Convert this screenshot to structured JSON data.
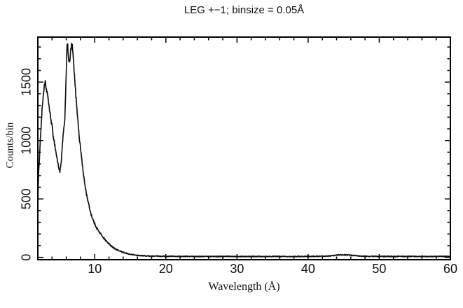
{
  "figure": {
    "kind": "scientific-plot",
    "background": "#ffffff"
  },
  "chart_data": {
    "type": "line",
    "title": "LEG +−1; binsize = 0.05Å",
    "xlabel": "Wavelength (Å)",
    "ylabel": "Counts/bin",
    "xlim": [
      2,
      60
    ],
    "ylim": [
      -20,
      1885
    ],
    "x_major_ticks": [
      10,
      20,
      30,
      40,
      50,
      60
    ],
    "x_tick_labels": [
      "10",
      "20",
      "30",
      "40",
      "50",
      "60"
    ],
    "x_minor_tick_step": 2,
    "y_major_ticks": [
      0,
      500,
      1000,
      1500
    ],
    "y_tick_labels": [
      "0",
      "500",
      "1000",
      "1500"
    ],
    "y_minor_tick_step": 100,
    "grid": false,
    "legend": "none",
    "bin_size_angstrom": 0.05,
    "line_color": "#0d0d0d",
    "fuzz_color": "#a8a8a8",
    "frame_color": "#000000",
    "series": [
      {
        "name": "LEG +−1",
        "points": [
          [
            2.0,
            430
          ],
          [
            2.02,
            640
          ],
          [
            2.05,
            580
          ],
          [
            2.1,
            690
          ],
          [
            2.2,
            820
          ],
          [
            2.3,
            950
          ],
          [
            2.4,
            1060
          ],
          [
            2.5,
            1160
          ],
          [
            2.6,
            1260
          ],
          [
            2.7,
            1340
          ],
          [
            2.8,
            1415
          ],
          [
            2.9,
            1455
          ],
          [
            3.0,
            1480
          ],
          [
            3.05,
            1490
          ],
          [
            3.1,
            1470
          ],
          [
            3.2,
            1440
          ],
          [
            3.3,
            1420
          ],
          [
            3.45,
            1345
          ],
          [
            3.55,
            1320
          ],
          [
            3.65,
            1255
          ],
          [
            3.8,
            1195
          ],
          [
            3.95,
            1145
          ],
          [
            4.1,
            1070
          ],
          [
            4.25,
            1010
          ],
          [
            4.4,
            955
          ],
          [
            4.55,
            900
          ],
          [
            4.7,
            845
          ],
          [
            4.85,
            795
          ],
          [
            4.95,
            770
          ],
          [
            5.05,
            745
          ],
          [
            5.12,
            735
          ],
          [
            5.2,
            765
          ],
          [
            5.3,
            820
          ],
          [
            5.4,
            910
          ],
          [
            5.5,
            1005
          ],
          [
            5.6,
            1065
          ],
          [
            5.7,
            1110
          ],
          [
            5.78,
            1165
          ],
          [
            5.85,
            1290
          ],
          [
            5.95,
            1510
          ],
          [
            6.05,
            1700
          ],
          [
            6.1,
            1790
          ],
          [
            6.15,
            1835
          ],
          [
            6.22,
            1790
          ],
          [
            6.3,
            1725
          ],
          [
            6.4,
            1665
          ],
          [
            6.5,
            1675
          ],
          [
            6.6,
            1755
          ],
          [
            6.7,
            1795
          ],
          [
            6.78,
            1820
          ],
          [
            6.88,
            1790
          ],
          [
            6.98,
            1705
          ],
          [
            7.1,
            1605
          ],
          [
            7.2,
            1505
          ],
          [
            7.35,
            1385
          ],
          [
            7.5,
            1280
          ],
          [
            7.65,
            1160
          ],
          [
            7.8,
            1045
          ],
          [
            7.95,
            960
          ],
          [
            8.1,
            885
          ],
          [
            8.25,
            800
          ],
          [
            8.4,
            715
          ],
          [
            8.6,
            630
          ],
          [
            8.8,
            555
          ],
          [
            9.0,
            495
          ],
          [
            9.2,
            440
          ],
          [
            9.4,
            390
          ],
          [
            9.6,
            350
          ],
          [
            9.8,
            315
          ],
          [
            10.0,
            285
          ],
          [
            10.3,
            250
          ],
          [
            10.6,
            220
          ],
          [
            10.9,
            195
          ],
          [
            11.2,
            170
          ],
          [
            11.5,
            148
          ],
          [
            11.8,
            128
          ],
          [
            12.1,
            110
          ],
          [
            12.4,
            95
          ],
          [
            12.7,
            80
          ],
          [
            13.0,
            68
          ],
          [
            13.4,
            57
          ],
          [
            13.8,
            47
          ],
          [
            14.2,
            38
          ],
          [
            14.6,
            32
          ],
          [
            15.0,
            26
          ],
          [
            15.5,
            21
          ],
          [
            16.0,
            17
          ],
          [
            16.5,
            15
          ],
          [
            17.0,
            13
          ],
          [
            17.5,
            12
          ],
          [
            18.0,
            11
          ],
          [
            19.0,
            10
          ],
          [
            20.0,
            9
          ],
          [
            21.0,
            9
          ],
          [
            22.0,
            8
          ],
          [
            24.0,
            8
          ],
          [
            26.0,
            8
          ],
          [
            28.0,
            8
          ],
          [
            30.0,
            8
          ],
          [
            32.0,
            8
          ],
          [
            34.0,
            8
          ],
          [
            36.0,
            8
          ],
          [
            38.0,
            8
          ],
          [
            40.0,
            8
          ],
          [
            41.5,
            9
          ],
          [
            42.5,
            10
          ],
          [
            43.5,
            15
          ],
          [
            44.3,
            20
          ],
          [
            45.0,
            22
          ],
          [
            45.8,
            20
          ],
          [
            46.5,
            15
          ],
          [
            47.3,
            11
          ],
          [
            48.0,
            9
          ],
          [
            50.0,
            8
          ],
          [
            52.0,
            8
          ],
          [
            54.0,
            8
          ],
          [
            56.0,
            8
          ],
          [
            58.0,
            8
          ],
          [
            59.0,
            8
          ],
          [
            60.0,
            8
          ]
        ]
      }
    ]
  }
}
